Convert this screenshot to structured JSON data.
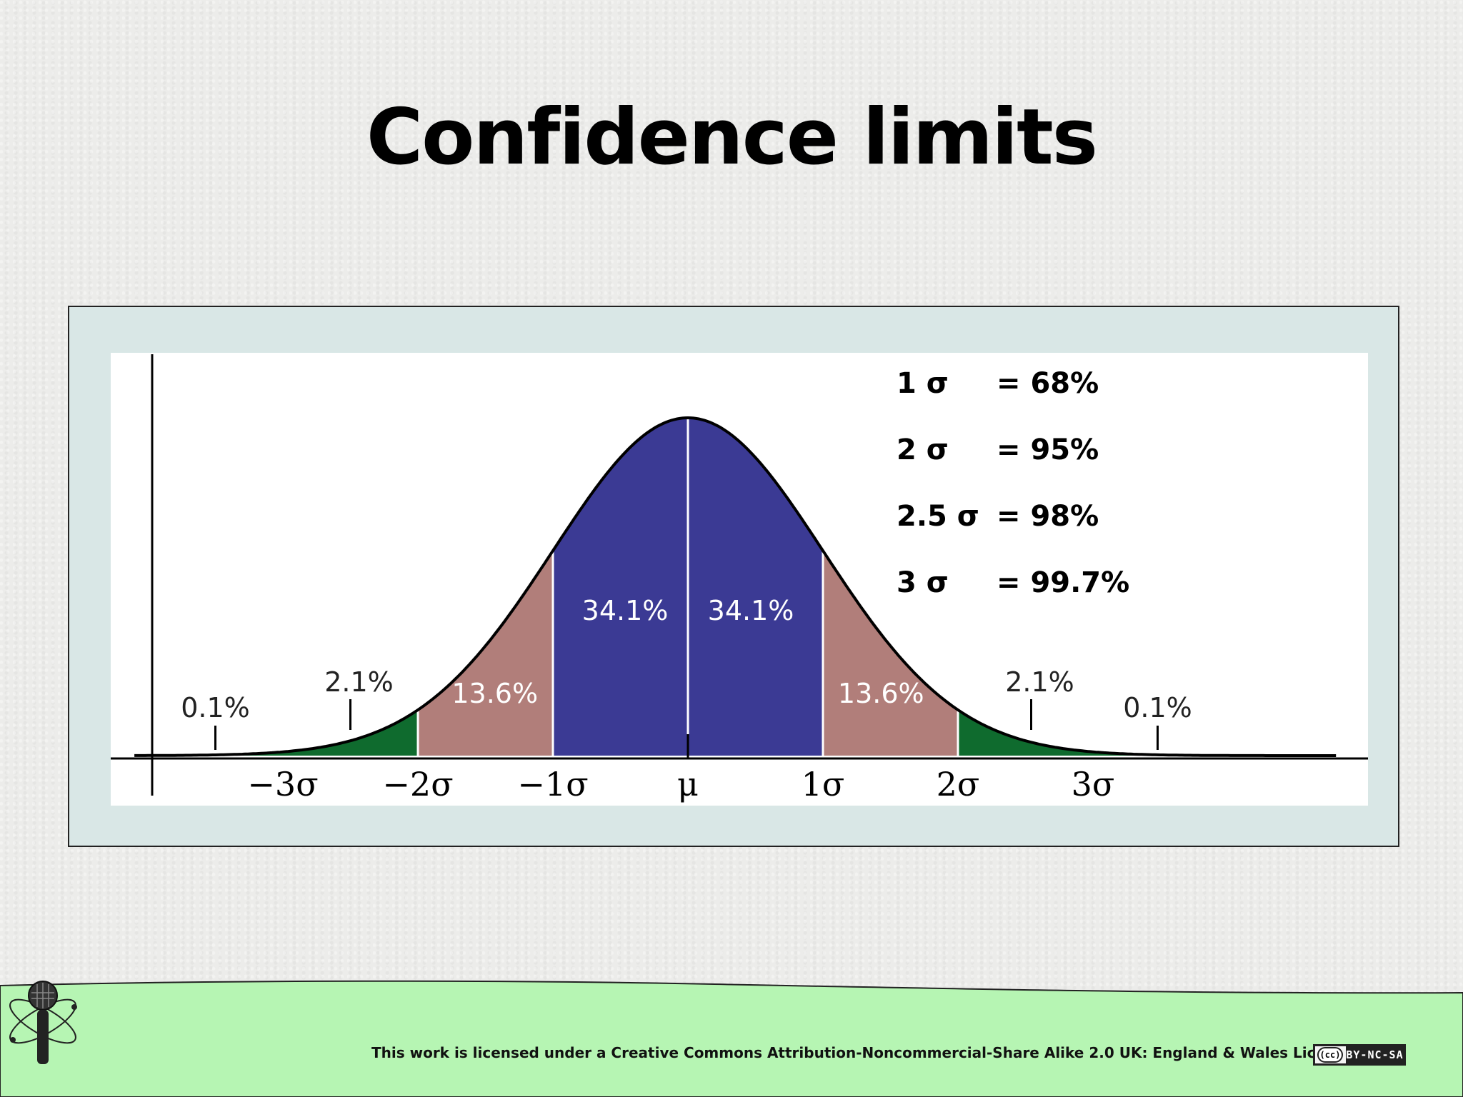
{
  "slide": {
    "title": "Confidence limits"
  },
  "chart_data": {
    "type": "area",
    "title": "",
    "xlabel": "",
    "ylabel": "",
    "x_tick_labels": [
      "−3σ",
      "−2σ",
      "−1σ",
      "μ",
      "1σ",
      "2σ",
      "3σ"
    ],
    "x_ticks": [
      -3,
      -2,
      -1,
      0,
      1,
      2,
      3
    ],
    "xlim": [
      -4.1,
      5.1
    ],
    "grid": false,
    "regions": [
      {
        "from": -4.1,
        "to": -2,
        "label": "2.1%",
        "color": "#0f6b2e",
        "label_x": -2.5
      },
      {
        "from": -2,
        "to": -1,
        "label": "13.6%",
        "color": "#b17e7a",
        "label_x": -1.5
      },
      {
        "from": -1,
        "to": 0,
        "label": "34.1%",
        "color": "#3b3a94",
        "label_x": -0.45
      },
      {
        "from": 0,
        "to": 1,
        "label": "34.1%",
        "color": "#3b3a94",
        "label_x": 0.45
      },
      {
        "from": 1,
        "to": 2,
        "label": "13.6%",
        "color": "#b17e7a",
        "label_x": 1.5
      },
      {
        "from": 2,
        "to": 4.1,
        "label": "2.1%",
        "color": "#0f6b2e",
        "label_x": 2.5
      }
    ],
    "tail_labels": [
      {
        "label": "0.1%",
        "x": -3.5
      },
      {
        "label": "0.1%",
        "x": 3.5
      }
    ],
    "legend": [
      {
        "sigma": "1 σ",
        "value": "= 68%"
      },
      {
        "sigma": "2 σ",
        "value": "= 95%"
      },
      {
        "sigma": "2.5 σ",
        "value": "= 98%"
      },
      {
        "sigma": "3 σ",
        "value": "= 99.7%"
      }
    ],
    "legend_position": "top-right"
  },
  "footer": {
    "license_text": "This work is licensed under a Creative Commons Attribution-Noncommercial-Share Alike 2.0 UK: England & Wales License",
    "badge_cc": "(cc)",
    "badge_terms": "BY-NC-SA",
    "logo_icon": "microphone-atom-icon",
    "colors": {
      "band": "#b6f5b3"
    }
  }
}
